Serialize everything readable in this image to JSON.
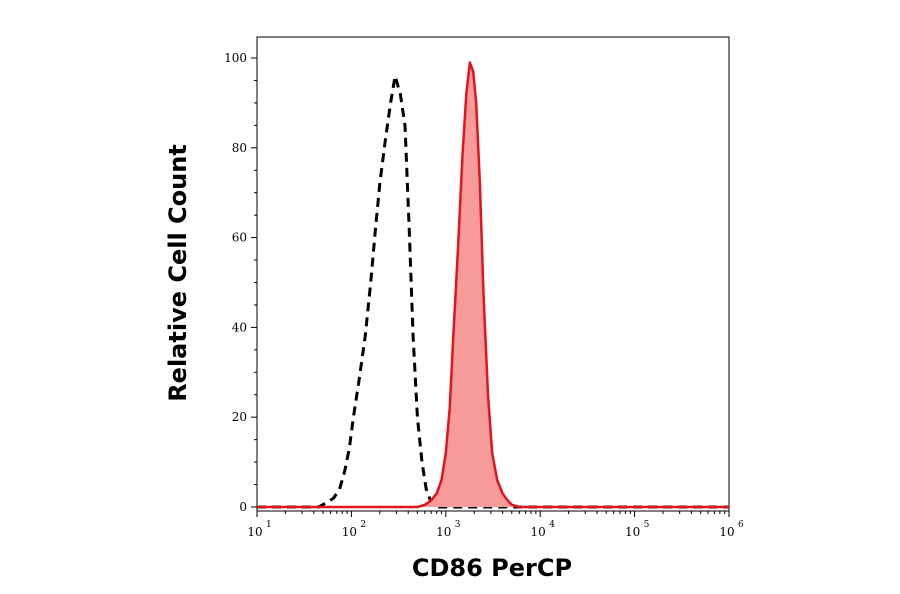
{
  "chart_data": {
    "type": "area",
    "xlabel": "CD86 PerCP",
    "ylabel": "Relative Cell Count",
    "xscale": "log",
    "xlim": [
      10,
      1000000
    ],
    "ylim": [
      0,
      104
    ],
    "grid": false,
    "legend": "none",
    "x_ticks": [
      {
        "value": 10,
        "base": "10",
        "exp": "1"
      },
      {
        "value": 100,
        "base": "10",
        "exp": "2"
      },
      {
        "value": 1000,
        "base": "10",
        "exp": "3"
      },
      {
        "value": 10000,
        "base": "10",
        "exp": "4"
      },
      {
        "value": 100000,
        "base": "10",
        "exp": "5"
      },
      {
        "value": 1000000,
        "base": "10",
        "exp": "6"
      }
    ],
    "y_ticks": [
      {
        "value": 0,
        "label": "0"
      },
      {
        "value": 20,
        "label": "20"
      },
      {
        "value": 40,
        "label": "40"
      },
      {
        "value": 60,
        "label": "60"
      },
      {
        "value": 80,
        "label": "80"
      },
      {
        "value": 100,
        "label": "100"
      }
    ],
    "series": [
      {
        "style": "dashed",
        "color": "#000000",
        "fill": "none",
        "x": [
          10,
          45,
          55,
          65,
          75,
          85,
          95,
          105,
          120,
          140,
          160,
          180,
          200,
          230,
          260,
          290,
          330,
          370,
          410,
          450,
          500,
          560,
          620,
          700,
          800,
          1000000
        ],
        "y": [
          0,
          0,
          1,
          2,
          4,
          8,
          13,
          20,
          28,
          38,
          50,
          62,
          72,
          82,
          90,
          96,
          92,
          85,
          62,
          38,
          20,
          10,
          4,
          1,
          0,
          0
        ]
      },
      {
        "style": "solid",
        "color": "#e3141b",
        "fill": "#f79a9a",
        "x": [
          10,
          500,
          600,
          700,
          800,
          900,
          1000,
          1100,
          1200,
          1350,
          1500,
          1650,
          1800,
          1950,
          2100,
          2300,
          2500,
          2800,
          3100,
          3500,
          4000,
          4500,
          5000,
          6000,
          1000000
        ],
        "y": [
          0,
          0,
          0.5,
          1.5,
          3,
          6,
          12,
          22,
          38,
          58,
          78,
          92,
          99,
          97,
          90,
          72,
          48,
          25,
          12,
          6,
          3,
          1.5,
          0.5,
          0,
          0
        ]
      }
    ]
  }
}
